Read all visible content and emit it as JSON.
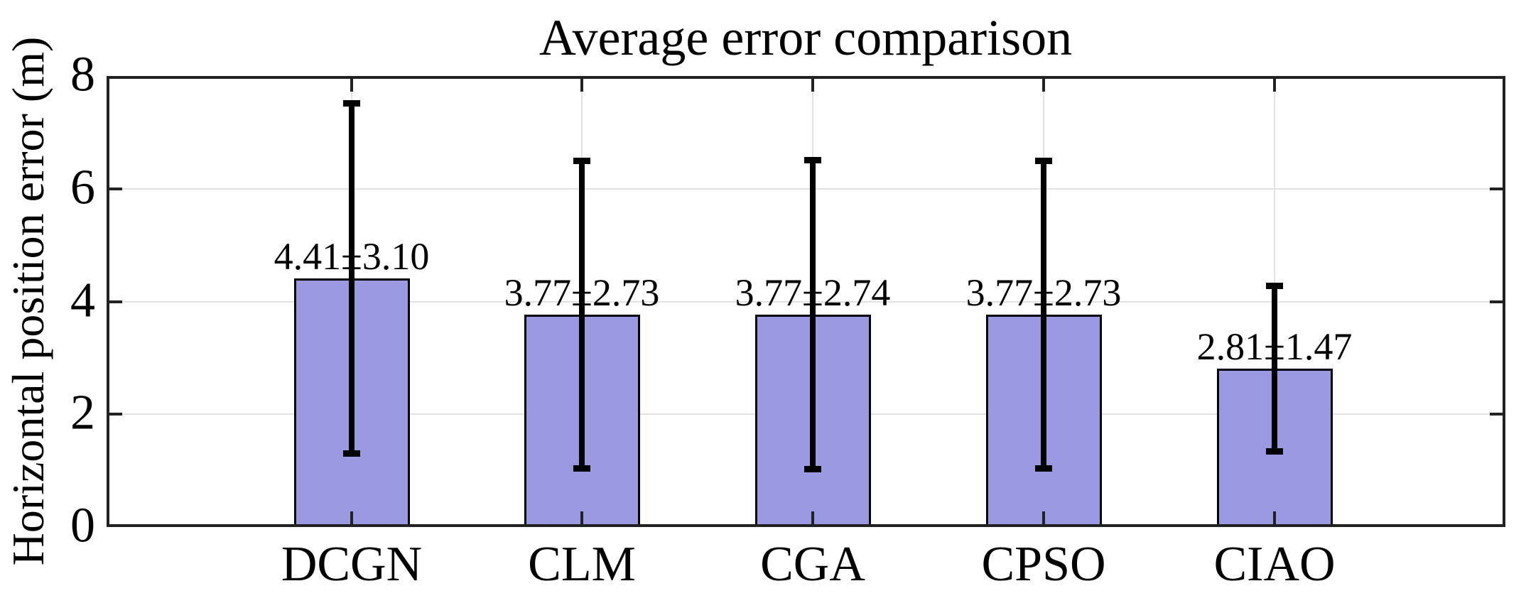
{
  "chart_data": {
    "type": "bar",
    "title": "Average error comparison",
    "xlabel": "",
    "ylabel": "Horizontal position error (m)",
    "categories": [
      "DCGN",
      "CLM",
      "CGA",
      "CPSO",
      "CIAO"
    ],
    "values": [
      4.41,
      3.77,
      3.77,
      3.77,
      2.81
    ],
    "errors": [
      3.1,
      2.73,
      2.74,
      2.73,
      1.47
    ],
    "bar_labels": [
      "4.41±3.10",
      "3.77±2.73",
      "3.77±2.74",
      "3.77±2.73",
      "2.81±1.47"
    ],
    "ylim": [
      0,
      8
    ],
    "yticks": [
      0,
      2,
      4,
      6,
      8
    ],
    "grid": true,
    "legend": "none",
    "colors": {
      "bar_fill": "#9a99e1",
      "bar_edge": "#000000",
      "error_bar": "#000000",
      "grid": "#e2e2e2",
      "axis": "#222222",
      "text": "#000000",
      "background": "#ffffff"
    }
  }
}
